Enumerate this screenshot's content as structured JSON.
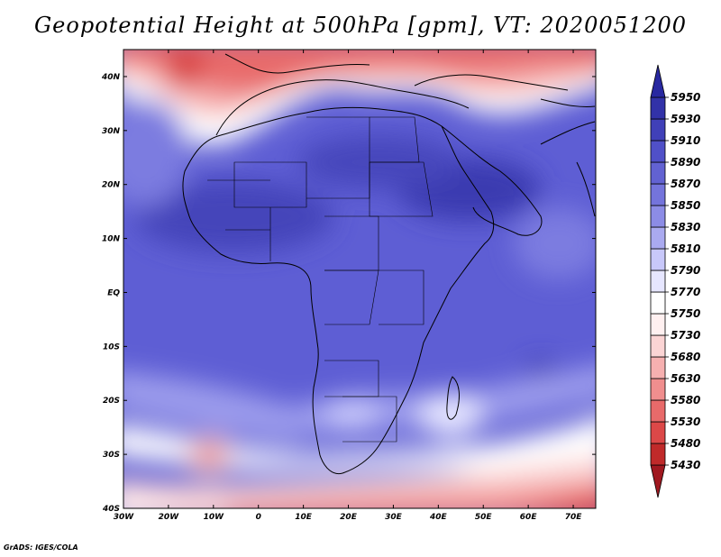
{
  "title": "Geopotential Height at 500hPa [gpm], VT: 2020051200",
  "credit": "GrADS: IGES/COLA",
  "map": {
    "projection": "latlon",
    "lon_range": [
      -30,
      75
    ],
    "lat_range": [
      -40,
      45
    ],
    "lon_ticks": [
      "30W",
      "20W",
      "10W",
      "0",
      "10E",
      "20E",
      "30E",
      "40E",
      "50E",
      "60E",
      "70E"
    ],
    "lat_ticks": [
      "40S",
      "30S",
      "20S",
      "10S",
      "EQ",
      "10N",
      "20N",
      "30N",
      "40N"
    ],
    "field": "500hPa geopotential height",
    "units": "gpm",
    "valid_time": "2020051200"
  },
  "colorbar": {
    "levels": [
      "5430",
      "5480",
      "5530",
      "5580",
      "5630",
      "5680",
      "5730",
      "5750",
      "5770",
      "5790",
      "5810",
      "5830",
      "5850",
      "5870",
      "5890",
      "5910",
      "5930",
      "5950"
    ],
    "colors": [
      "#a01820",
      "#c02a2a",
      "#dc4848",
      "#e86a6a",
      "#f08e8e",
      "#f6b0b0",
      "#fbd4d4",
      "#fff0f0",
      "#ffffff",
      "#e6e6ff",
      "#c8c8fa",
      "#aaaaf0",
      "#8c8ce6",
      "#7474dc",
      "#6262d2",
      "#5050c8",
      "#4040b8",
      "#3232a8",
      "#2828a0"
    ]
  }
}
